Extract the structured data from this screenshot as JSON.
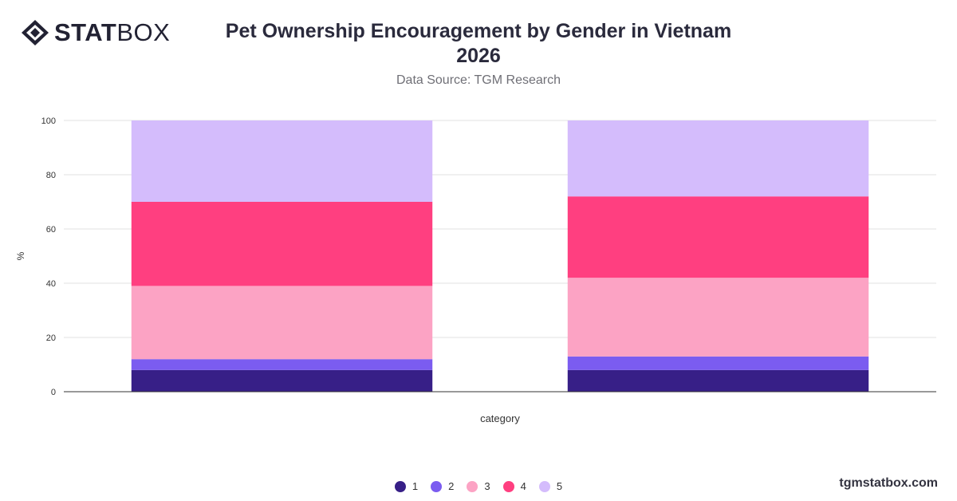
{
  "brand": {
    "logo_bold": "STAT",
    "logo_light": "BOX",
    "colors": {
      "logo": "#222233"
    }
  },
  "header": {
    "title_line1": "Pet Ownership Encouragement by Gender in Vietnam",
    "title_line2": "2026",
    "subtitle": "Data Source: TGM Research"
  },
  "footer": {
    "site": "tgmstatbox.com"
  },
  "chart_data": {
    "type": "bar",
    "stacked": true,
    "xlabel": "category",
    "ylabel": "%",
    "ylim": [
      0,
      100
    ],
    "yticks": [
      0,
      20,
      40,
      60,
      80,
      100
    ],
    "grid": true,
    "legend_position": "bottom",
    "categories": [
      "",
      ""
    ],
    "series": [
      {
        "name": "1",
        "color": "#371f87",
        "values": [
          8,
          8
        ]
      },
      {
        "name": "2",
        "color": "#7b5cf0",
        "values": [
          4,
          5
        ]
      },
      {
        "name": "3",
        "color": "#fca3c4",
        "values": [
          27,
          29
        ]
      },
      {
        "name": "4",
        "color": "#ff3f80",
        "values": [
          31,
          30
        ]
      },
      {
        "name": "5",
        "color": "#d4bcfc",
        "values": [
          30,
          28
        ]
      }
    ]
  }
}
